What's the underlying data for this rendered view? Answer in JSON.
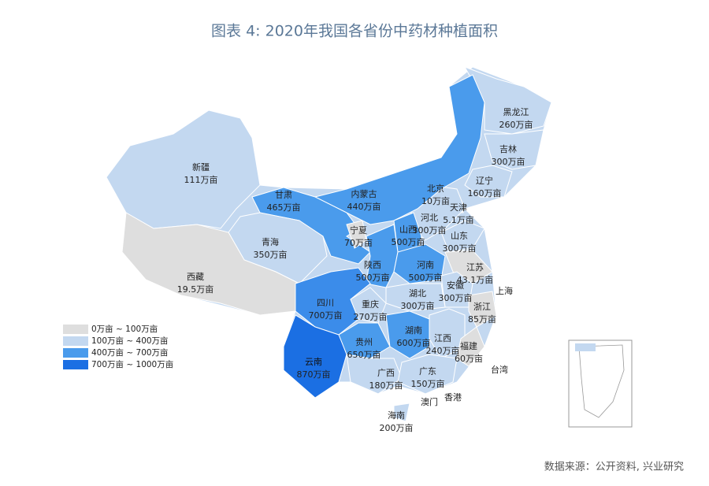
{
  "title": "图表 4:     2020年我国各省份中药材种植面积",
  "legend": [
    {
      "label": "0万亩 ~ 100万亩",
      "color": "#dedede"
    },
    {
      "label": "100万亩 ~ 400万亩",
      "color": "#c3d8f0"
    },
    {
      "label": "400万亩 ~ 700万亩",
      "color": "#4a9bec"
    },
    {
      "label": "700万亩 ~ 1000万亩",
      "color": "#1b6fe3"
    }
  ],
  "regions": [
    {
      "name": "黑龙江",
      "value_label": "260万亩",
      "color": "#c3d8f0"
    },
    {
      "name": "吉林",
      "value_label": "300万亩",
      "color": "#c3d8f0"
    },
    {
      "name": "辽宁",
      "value_label": "160万亩",
      "color": "#c3d8f0"
    },
    {
      "name": "北京",
      "value_label": "10万亩",
      "color": "#dedede"
    },
    {
      "name": "天津",
      "value_label": "5.1万亩",
      "color": "#dedede"
    },
    {
      "name": "河北",
      "value_label": "300万亩",
      "color": "#c3d8f0"
    },
    {
      "name": "山东",
      "value_label": "300万亩",
      "color": "#c3d8f0"
    },
    {
      "name": "内蒙古",
      "value_label": "440万亩",
      "color": "#4a9bec"
    },
    {
      "name": "新疆",
      "value_label": "111万亩",
      "color": "#c3d8f0"
    },
    {
      "name": "甘肃",
      "value_label": "465万亩",
      "color": "#4a9bec"
    },
    {
      "name": "宁夏",
      "value_label": "70万亩",
      "color": "#dedede"
    },
    {
      "name": "山西",
      "value_label": "500万亩",
      "color": "#4a9bec"
    },
    {
      "name": "青海",
      "value_label": "350万亩",
      "color": "#c3d8f0"
    },
    {
      "name": "陕西",
      "value_label": "500万亩",
      "color": "#4a9bec"
    },
    {
      "name": "河南",
      "value_label": "500万亩",
      "color": "#4a9bec"
    },
    {
      "name": "江苏",
      "value_label": "43.1万亩",
      "color": "#dedede"
    },
    {
      "name": "安徽",
      "value_label": "300万亩",
      "color": "#c3d8f0"
    },
    {
      "name": "上海"
    },
    {
      "name": "西藏",
      "value_label": "19.5万亩",
      "color": "#dedede"
    },
    {
      "name": "四川",
      "value_label": "700万亩",
      "color": "#3b8cea"
    },
    {
      "name": "重庆",
      "value_label": "270万亩",
      "color": "#c3d8f0"
    },
    {
      "name": "湖北",
      "value_label": "300万亩",
      "color": "#c3d8f0"
    },
    {
      "name": "浙江",
      "value_label": "85万亩",
      "color": "#dedede"
    },
    {
      "name": "湖南",
      "value_label": "600万亩",
      "color": "#4a9bec"
    },
    {
      "name": "江西",
      "value_label": "240万亩",
      "color": "#c3d8f0"
    },
    {
      "name": "贵州",
      "value_label": "650万亩",
      "color": "#4a9bec"
    },
    {
      "name": "福建",
      "value_label": "60万亩",
      "color": "#dedede"
    },
    {
      "name": "台湾"
    },
    {
      "name": "云南",
      "value_label": "870万亩",
      "color": "#1b6fe3"
    },
    {
      "name": "广西",
      "value_label": "180万亩",
      "color": "#c3d8f0"
    },
    {
      "name": "广东",
      "value_label": "150万亩",
      "color": "#c3d8f0"
    },
    {
      "name": "香港"
    },
    {
      "name": "澳门"
    },
    {
      "name": "海南",
      "value_label": "200万亩",
      "color": "#c3d8f0"
    }
  ],
  "source": "数据来源：公开资料, 兴业研究"
}
